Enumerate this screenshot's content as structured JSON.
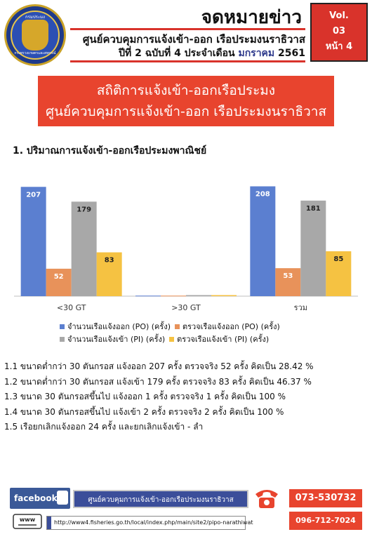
{
  "header": {
    "title": "จดหมายข่าว",
    "subtitle_line1": "ศูนย์ควบคุมการแจ้งเข้า-ออก เรือประมงนราธิวาส",
    "subtitle_line2_prefix": "ปีที่ 2 ฉบับที่ 4 ประจำเดือน ",
    "subtitle_line2_month": "มกราคม",
    "subtitle_line2_year": " 2561",
    "logo_text_top": "กรมประมง",
    "logo_text_bottom": "กระทรวงเกษตรและสหกรณ์"
  },
  "volume_box": {
    "label": "Vol.",
    "number": "03",
    "page": "หน้า 4"
  },
  "banner": {
    "line1": "สถิติการแจ้งเข้า-ออกเรือประมง",
    "line2": "ศูนย์ควบคุมการแจ้งเข้า-ออก เรือประมงนราธิวาส"
  },
  "section": {
    "heading": "1. ปริมาณการแจ้งเข้า-ออกเรือประมงพาณิชย์"
  },
  "chart_data": {
    "type": "bar",
    "categories": [
      "<30 GT",
      ">30 GT",
      "รวม"
    ],
    "series": [
      {
        "name": "จำนวนเรือแจ้งออก (PO) (ครั้ง)",
        "color": "#5b7fd0",
        "values": [
          207,
          1,
          208
        ]
      },
      {
        "name": "ตรวจเรือแจ้งออก (PO) (ครั้ง)",
        "color": "#e8925a",
        "values": [
          52,
          1,
          53
        ]
      },
      {
        "name": "จำนวนเรือแจ้งเข้า (PI) (ครั้ง)",
        "color": "#a8a8a8",
        "values": [
          179,
          2,
          181
        ]
      },
      {
        "name": "ตรวจเรือแจ้งเข้า (PI) (ครั้ง)",
        "color": "#f5c242",
        "values": [
          83,
          2,
          85
        ]
      }
    ],
    "labels_shown": [
      [
        207,
        null,
        208
      ],
      [
        52,
        null,
        53
      ],
      [
        179,
        null,
        181
      ],
      [
        83,
        null,
        85
      ]
    ],
    "ylim": [
      0,
      210
    ],
    "legend_position": "bottom",
    "grid": false
  },
  "notes": [
    "1.1 ขนาดต่ำกว่า 30 ตันกรอส แจ้งออก 207 ครั้ง ตรวจจริง 52 ครั้ง คิดเป็น 28.42 %",
    "1.2 ขนาดต่ำกว่า 30 ตันกรอส แจ้งเข้า 179 ครั้ง ตรวจจริง 83 ครั้ง คิดเป็น 46.37 %",
    "1.3 ขนาด 30 ตันกรอสขึ้นไป แจ้งออก 1 ครั้ง ตรวจจริง 1 ครั้ง คิดเป็น 100 %",
    "1.4 ขนาด 30 ตันกรอสขึ้นไป แจ้งเข้า 2 ครั้ง ตรวจจริง 2 ครั้ง คิดเป็น 100 %",
    "1.5 เรือยกเลิกแจ้งออก 24 ครั้ง และยกเลิกแจ้งเข้า - ลำ"
  ],
  "footer": {
    "facebook_label": "facebook",
    "facebook_page": "ศูนย์ควบคุมการแจ้งเข้า-ออกเรือประมงนราธิวาส",
    "phone1": "073-530732",
    "phone2": "096-712-7024",
    "www_label": "www",
    "url": "http://www4.fisheries.go.th/local/index.php/main/site2/pipo-narathiwat"
  },
  "colors": {
    "accent_red": "#e8442e",
    "header_red": "#d9332b",
    "facebook_blue": "#3b5998"
  }
}
